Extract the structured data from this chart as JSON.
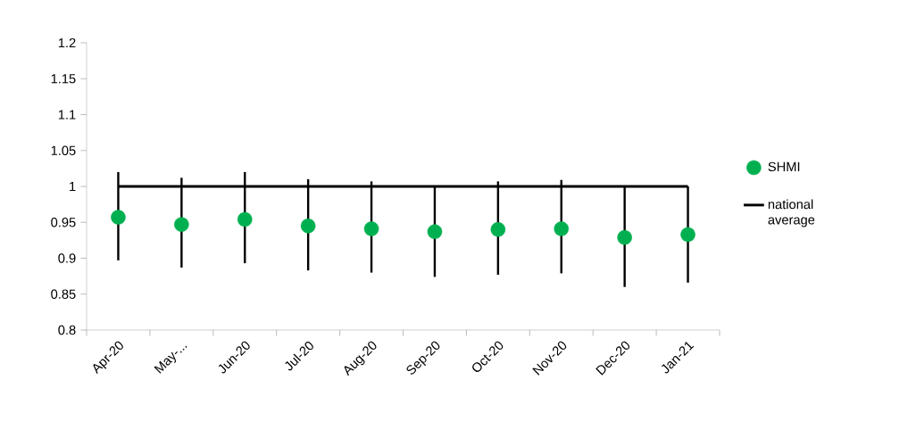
{
  "chart_data": {
    "type": "scatter",
    "categories": [
      "Apr-20",
      "May-...",
      "Jun-20",
      "Jul-20",
      "Aug-20",
      "Sep-20",
      "Oct-20",
      "Nov-20",
      "Dec-20",
      "Jan-21"
    ],
    "series": [
      {
        "name": "SHMI",
        "color": "#00b050",
        "marker": "circle",
        "values": [
          0.957,
          0.947,
          0.954,
          0.945,
          0.941,
          0.937,
          0.94,
          0.941,
          0.929,
          0.933
        ],
        "errors": [
          [
            0.897,
            1.02
          ],
          [
            0.887,
            1.012
          ],
          [
            0.893,
            1.02
          ],
          [
            0.883,
            1.01
          ],
          [
            0.88,
            1.007
          ],
          [
            0.874,
            1.0
          ],
          [
            0.877,
            1.007
          ],
          [
            0.879,
            1.009
          ],
          [
            0.86,
            1.0
          ],
          [
            0.866,
            1.0
          ]
        ]
      },
      {
        "name": "national average",
        "type": "line",
        "color": "#000000",
        "marker": "none",
        "line_style": "solid",
        "values": [
          1,
          1,
          1,
          1,
          1,
          1,
          1,
          1,
          1,
          1
        ]
      }
    ],
    "ylim": [
      0.8,
      1.2
    ],
    "yticks": [
      0.8,
      0.85,
      0.9,
      0.95,
      1,
      1.05,
      1.1,
      1.15,
      1.2
    ],
    "legend": "right"
  }
}
